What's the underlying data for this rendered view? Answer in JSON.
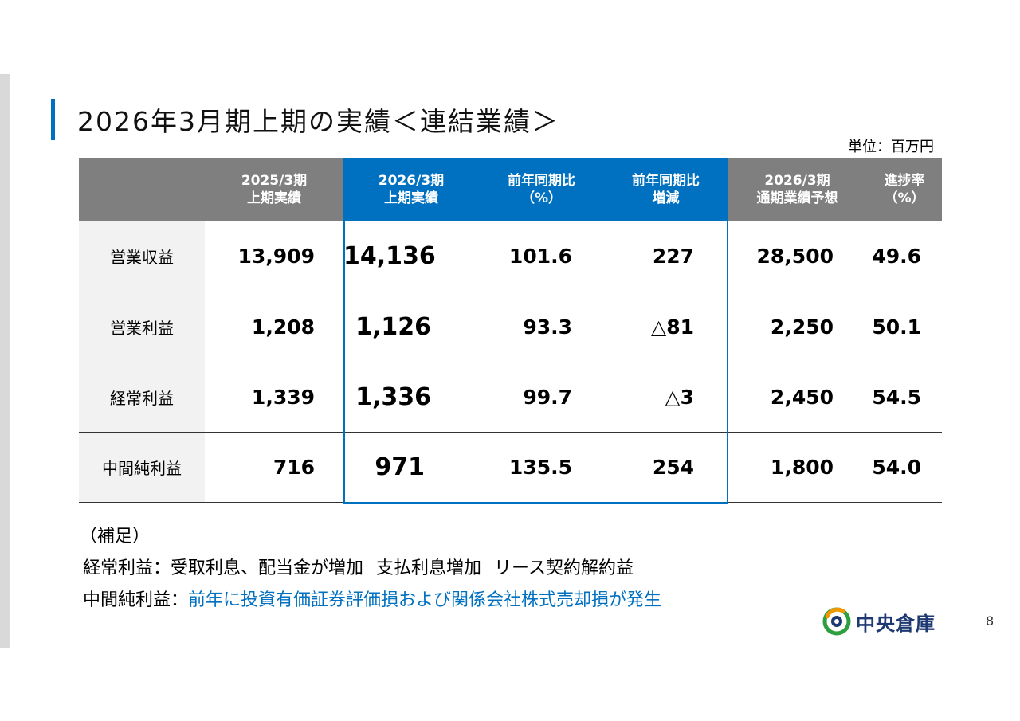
{
  "title": "2026年3月期上期の実績＜連結業績＞",
  "unit": "単位：百万円",
  "columns": [
    {
      "line1": "2025/3期",
      "line2": "上期実績"
    },
    {
      "line1": "2026/3期",
      "line2": "上期実績"
    },
    {
      "line1": "前年同期比",
      "line2": "（%）"
    },
    {
      "line1": "前年同期比",
      "line2": "増減"
    },
    {
      "line1": "2026/3期",
      "line2": "通期業績予想"
    },
    {
      "line1": "進捗率",
      "line2": "（%）"
    }
  ],
  "rows": [
    {
      "label": "営業収益",
      "values": [
        "13,909",
        "14,136",
        "101.6",
        "227",
        "28,500",
        "49.6"
      ]
    },
    {
      "label": "営業利益",
      "values": [
        "1,208",
        "1,126",
        "93.3",
        "△81",
        "2,250",
        "50.1"
      ]
    },
    {
      "label": "経常利益",
      "values": [
        "1,339",
        "1,336",
        "99.7",
        "△3",
        "2,450",
        "54.5"
      ]
    },
    {
      "label": "中間純利益",
      "values": [
        "716",
        "971",
        "135.5",
        "254",
        "1,800",
        "54.0"
      ]
    }
  ],
  "notes": {
    "heading": "（補足）",
    "line1_label": "経常利益：",
    "line1_parts": [
      "受取利息、配当金が増加",
      "支払利息増加",
      "リース契約解約益"
    ],
    "line2_label": "中間純利益：",
    "line2_text": "前年に投資有価証券評価損および関係会社株式売却損が発生"
  },
  "logo_text": "中央倉庫",
  "page_number": "8",
  "colors": {
    "accent": "#0070c0",
    "header_gray": "#7f7f7f",
    "label_bg": "#f2f2f2",
    "logo_navy": "#1f3a73",
    "logo_green": "#2e9e3e",
    "logo_orange": "#f39800"
  }
}
